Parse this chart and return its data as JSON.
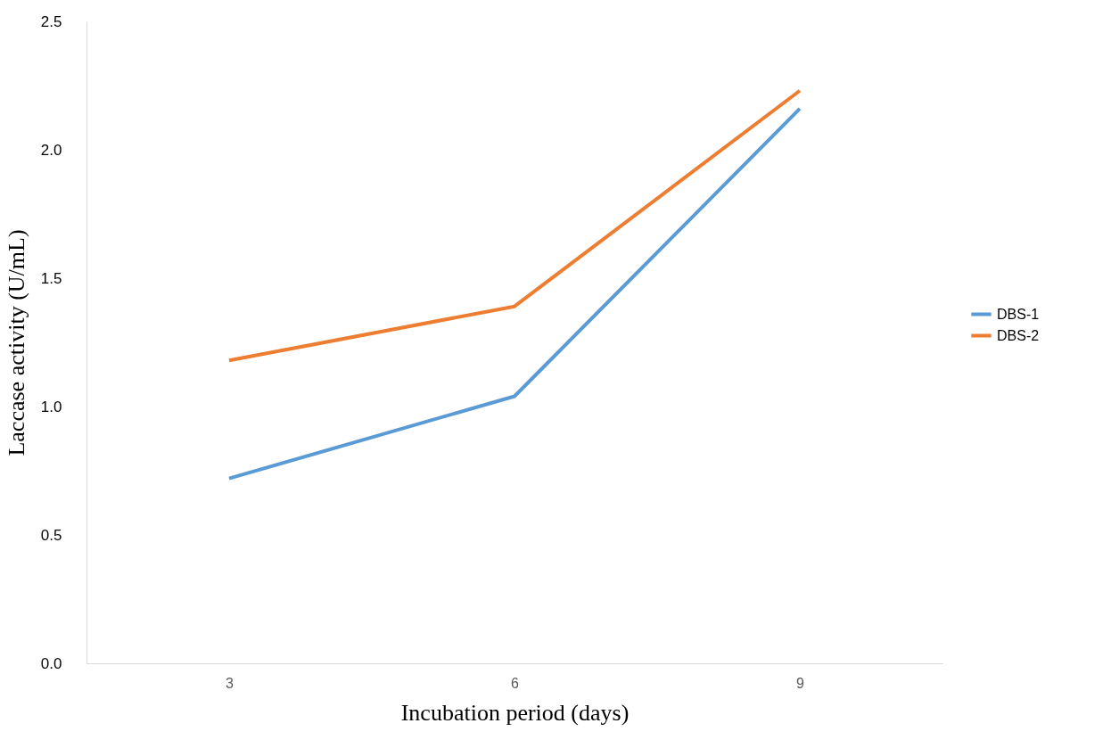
{
  "chart_data": {
    "type": "line",
    "xlabel": "Incubation period (days)",
    "ylabel": "Laccase activity (U/mL)",
    "categories": [
      "3",
      "6",
      "9"
    ],
    "series": [
      {
        "name": "DBS-1",
        "color": "#5b9bd5",
        "values": [
          0.72,
          1.04,
          2.16
        ]
      },
      {
        "name": "DBS-2",
        "color": "#ed7d31",
        "values": [
          1.18,
          1.39,
          2.23
        ]
      }
    ],
    "ylim": [
      0,
      2.5
    ],
    "yticks": [
      {
        "value": 0,
        "label": "0.0"
      },
      {
        "value": 0.5,
        "label": "0.5"
      },
      {
        "value": 1,
        "label": "1.0"
      },
      {
        "value": 1.5,
        "label": "1.5"
      },
      {
        "value": 2,
        "label": "2.0"
      },
      {
        "value": 2.5,
        "label": "2.5"
      }
    ],
    "grid": false,
    "legend": "right",
    "marker": "none",
    "line_style": "solid"
  }
}
